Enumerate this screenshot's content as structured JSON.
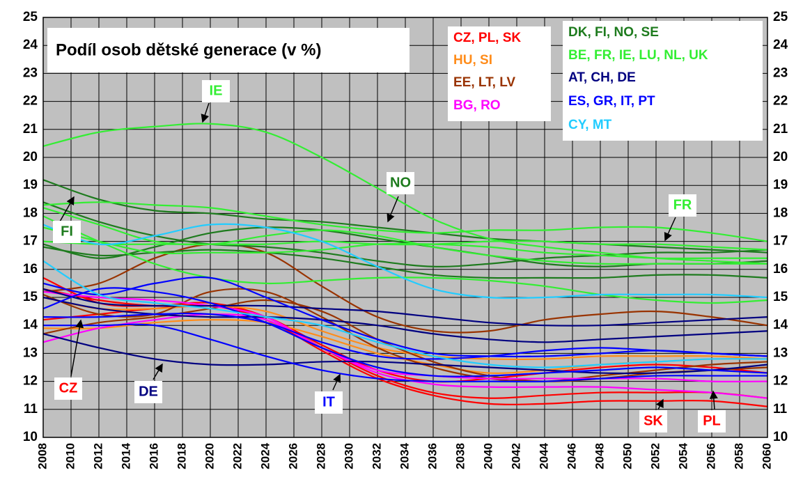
{
  "chart_data": {
    "type": "line",
    "title": "Podíl osob dětské generace (v %)",
    "x": [
      2008,
      2012,
      2016,
      2020,
      2024,
      2028,
      2032,
      2036,
      2040,
      2044,
      2048,
      2052,
      2056,
      2060
    ],
    "xlim": [
      2008,
      2060
    ],
    "xticks": [
      2008,
      2010,
      2012,
      2014,
      2016,
      2018,
      2020,
      2022,
      2024,
      2026,
      2028,
      2030,
      2032,
      2034,
      2036,
      2038,
      2040,
      2042,
      2044,
      2046,
      2048,
      2050,
      2052,
      2054,
      2056,
      2058,
      2060
    ],
    "ylim": [
      10,
      25
    ],
    "yticks": [
      10,
      11,
      12,
      13,
      14,
      15,
      16,
      17,
      18,
      19,
      20,
      21,
      22,
      23,
      24,
      25
    ],
    "grid": true,
    "legend_separator": ", ",
    "series": [
      {
        "name": "CZ",
        "color": "#ff0000",
        "values": [
          14.2,
          14.4,
          14.6,
          14.7,
          14.3,
          13.3,
          12.4,
          12.0,
          12.1,
          12.3,
          12.5,
          12.6,
          12.5,
          12.3
        ]
      },
      {
        "name": "PL",
        "color": "#ff0000",
        "values": [
          15.7,
          14.8,
          14.7,
          14.8,
          14.3,
          13.2,
          12.2,
          11.6,
          11.4,
          11.5,
          11.6,
          11.6,
          11.6,
          11.4
        ]
      },
      {
        "name": "SK",
        "color": "#ff0000",
        "values": [
          15.3,
          14.9,
          14.7,
          14.7,
          14.2,
          13.1,
          12.1,
          11.5,
          11.2,
          11.2,
          11.3,
          11.3,
          11.3,
          11.1
        ]
      },
      {
        "name": "HU",
        "color": "#ff8c1a",
        "values": [
          15.0,
          14.6,
          14.6,
          14.7,
          14.5,
          13.8,
          13.2,
          12.9,
          12.8,
          12.8,
          12.9,
          12.9,
          12.9,
          12.8
        ]
      },
      {
        "name": "SI",
        "color": "#ff8c1a",
        "values": [
          13.9,
          13.9,
          14.1,
          14.2,
          14.1,
          13.6,
          13.0,
          12.6,
          12.3,
          12.4,
          12.6,
          12.7,
          12.8,
          12.8
        ]
      },
      {
        "name": "EE",
        "color": "#993300",
        "values": [
          15.2,
          15.5,
          16.4,
          16.9,
          16.6,
          15.4,
          14.3,
          13.8,
          13.8,
          14.2,
          14.4,
          14.5,
          14.3,
          14.0
        ]
      },
      {
        "name": "LT",
        "color": "#993300",
        "values": [
          15.1,
          14.4,
          14.4,
          15.2,
          15.2,
          14.3,
          13.2,
          12.5,
          12.1,
          12.0,
          12.2,
          12.4,
          12.6,
          12.7
        ]
      },
      {
        "name": "LV",
        "color": "#993300",
        "values": [
          13.7,
          14.1,
          14.3,
          14.6,
          14.9,
          14.5,
          13.5,
          12.7,
          12.2,
          12.0,
          12.1,
          12.3,
          12.4,
          12.5
        ]
      },
      {
        "name": "BG",
        "color": "#ff00ff",
        "values": [
          13.4,
          13.9,
          14.2,
          14.4,
          14.2,
          13.2,
          12.3,
          11.9,
          11.8,
          11.8,
          11.8,
          11.7,
          11.6,
          11.4
        ]
      },
      {
        "name": "RO",
        "color": "#ff00ff",
        "values": [
          15.2,
          15.0,
          14.9,
          14.7,
          14.3,
          13.2,
          12.4,
          12.2,
          12.1,
          12.1,
          12.1,
          12.1,
          12.0,
          12.0
        ]
      },
      {
        "name": "DK",
        "color": "#1e7b1e",
        "values": [
          18.4,
          17.7,
          17.2,
          16.9,
          16.8,
          16.6,
          16.3,
          16.1,
          16.2,
          16.4,
          16.5,
          16.6,
          16.6,
          16.7
        ]
      },
      {
        "name": "FI",
        "color": "#1e7b1e",
        "values": [
          16.8,
          16.5,
          16.6,
          16.7,
          16.6,
          16.4,
          16.1,
          15.8,
          15.7,
          15.7,
          15.7,
          15.8,
          15.8,
          15.7
        ]
      },
      {
        "name": "NO",
        "color": "#1e7b1e",
        "values": [
          19.2,
          18.5,
          18.1,
          18.0,
          17.8,
          17.7,
          17.5,
          17.3,
          17.1,
          17.0,
          16.9,
          16.8,
          16.7,
          16.6
        ]
      },
      {
        "name": "SE",
        "color": "#1e7b1e",
        "values": [
          16.9,
          16.4,
          16.8,
          17.3,
          17.5,
          17.4,
          17.1,
          16.8,
          16.5,
          16.2,
          16.1,
          16.2,
          16.2,
          16.3
        ]
      },
      {
        "name": "BE",
        "color": "#33ee33",
        "values": [
          17.0,
          16.9,
          16.9,
          16.9,
          16.9,
          17.0,
          16.9,
          16.9,
          17.0,
          17.0,
          16.9,
          16.9,
          16.8,
          16.7
        ]
      },
      {
        "name": "FR",
        "color": "#33ee33",
        "values": [
          18.3,
          18.4,
          18.3,
          18.2,
          17.9,
          17.6,
          17.4,
          17.3,
          17.4,
          17.4,
          17.5,
          17.5,
          17.3,
          17.0
        ]
      },
      {
        "name": "IE",
        "color": "#33ee33",
        "values": [
          20.4,
          20.9,
          21.1,
          21.2,
          20.9,
          20.0,
          18.9,
          17.8,
          17.1,
          16.8,
          16.6,
          16.4,
          16.3,
          16.2
        ]
      },
      {
        "name": "LU",
        "color": "#33ee33",
        "values": [
          18.2,
          17.6,
          17.0,
          16.9,
          17.2,
          17.4,
          17.2,
          16.8,
          16.5,
          16.3,
          16.2,
          16.2,
          16.2,
          16.2
        ]
      },
      {
        "name": "NL",
        "color": "#33ee33",
        "values": [
          17.9,
          17.0,
          16.2,
          15.7,
          15.5,
          15.6,
          15.7,
          15.7,
          15.6,
          15.4,
          15.1,
          14.9,
          14.8,
          14.9
        ]
      },
      {
        "name": "UK",
        "color": "#33ee33",
        "values": [
          17.5,
          17.0,
          16.6,
          16.6,
          16.6,
          16.7,
          16.9,
          16.9,
          16.8,
          16.6,
          16.5,
          16.4,
          16.4,
          16.4
        ]
      },
      {
        "name": "AT",
        "color": "#000080",
        "values": [
          15.0,
          14.6,
          14.4,
          14.3,
          14.3,
          14.2,
          14.0,
          13.7,
          13.5,
          13.4,
          13.5,
          13.6,
          13.7,
          13.8
        ]
      },
      {
        "name": "CH",
        "color": "#000080",
        "values": [
          15.3,
          14.8,
          14.7,
          14.7,
          14.7,
          14.6,
          14.5,
          14.3,
          14.1,
          14.0,
          14.0,
          14.1,
          14.2,
          14.3
        ]
      },
      {
        "name": "DE",
        "color": "#000080",
        "values": [
          13.7,
          13.2,
          12.8,
          12.6,
          12.6,
          12.7,
          12.7,
          12.6,
          12.5,
          12.4,
          12.3,
          12.3,
          12.4,
          12.6
        ]
      },
      {
        "name": "ES",
        "color": "#0000ff",
        "values": [
          14.6,
          15.3,
          15.2,
          14.8,
          14.1,
          13.2,
          12.5,
          12.2,
          12.2,
          12.3,
          12.4,
          12.5,
          12.4,
          12.3
        ]
      },
      {
        "name": "GR",
        "color": "#0000ff",
        "values": [
          14.3,
          14.3,
          14.4,
          14.4,
          14.1,
          13.4,
          12.9,
          12.8,
          12.9,
          13.1,
          13.2,
          13.1,
          13.0,
          12.9
        ]
      },
      {
        "name": "IT",
        "color": "#0000ff",
        "values": [
          14.0,
          14.0,
          14.0,
          13.5,
          12.9,
          12.4,
          12.1,
          12.0,
          12.0,
          12.0,
          12.1,
          12.2,
          12.2,
          12.2
        ]
      },
      {
        "name": "PT",
        "color": "#0000ff",
        "values": [
          15.5,
          15.1,
          15.5,
          15.7,
          15.0,
          14.2,
          13.5,
          13.0,
          12.9,
          12.9,
          13.0,
          13.1,
          13.0,
          12.9
        ]
      },
      {
        "name": "CY",
        "color": "#22ccff",
        "values": [
          17.6,
          16.9,
          17.2,
          17.6,
          17.5,
          17.0,
          16.1,
          15.3,
          15.0,
          15.0,
          15.1,
          15.1,
          15.1,
          15.0
        ]
      },
      {
        "name": "MT",
        "color": "#22ccff",
        "values": [
          16.3,
          15.1,
          14.8,
          14.6,
          14.3,
          14.0,
          13.4,
          12.9,
          12.6,
          12.5,
          12.6,
          12.7,
          12.8,
          12.8
        ]
      }
    ],
    "annotations": [
      {
        "text": "IE",
        "color": "#33ee33"
      },
      {
        "text": "NO",
        "color": "#1e7b1e"
      },
      {
        "text": "FR",
        "color": "#33ee33"
      },
      {
        "text": "FI",
        "color": "#1e7b1e"
      },
      {
        "text": "CZ",
        "color": "#ff0000"
      },
      {
        "text": "DE",
        "color": "#000080"
      },
      {
        "text": "IT",
        "color": "#0000ff"
      },
      {
        "text": "SK",
        "color": "#ff0000"
      },
      {
        "text": "PL",
        "color": "#ff0000"
      }
    ]
  }
}
